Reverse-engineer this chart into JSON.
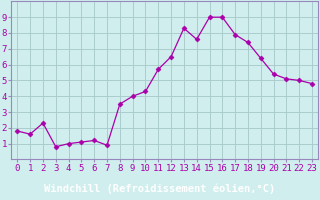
{
  "x": [
    0,
    1,
    2,
    3,
    4,
    5,
    6,
    7,
    8,
    9,
    10,
    11,
    12,
    13,
    14,
    15,
    16,
    17,
    18,
    19,
    20,
    21,
    22,
    23
  ],
  "y": [
    1.8,
    1.6,
    2.3,
    0.8,
    1.0,
    1.1,
    1.2,
    0.9,
    3.5,
    4.0,
    4.3,
    5.7,
    6.5,
    8.3,
    7.6,
    9.0,
    9.0,
    7.9,
    7.4,
    6.4,
    5.4,
    5.1,
    5.0,
    4.8
  ],
  "line_color": "#aa00aa",
  "marker": "D",
  "marker_size": 2.5,
  "bg_color": "#d0eeee",
  "grid_color": "#aacccc",
  "xlabel": "Windchill (Refroidissement éolien,°C)",
  "xlabel_bg": "#7744aa",
  "xlim": [
    -0.5,
    23.5
  ],
  "ylim": [
    0,
    10
  ],
  "yticks": [
    1,
    2,
    3,
    4,
    5,
    6,
    7,
    8,
    9
  ],
  "xticks": [
    0,
    1,
    2,
    3,
    4,
    5,
    6,
    7,
    8,
    9,
    10,
    11,
    12,
    13,
    14,
    15,
    16,
    17,
    18,
    19,
    20,
    21,
    22,
    23
  ],
  "tick_label_fontsize": 6.5,
  "xlabel_fontsize": 7.5,
  "spine_color": "#9988bb"
}
